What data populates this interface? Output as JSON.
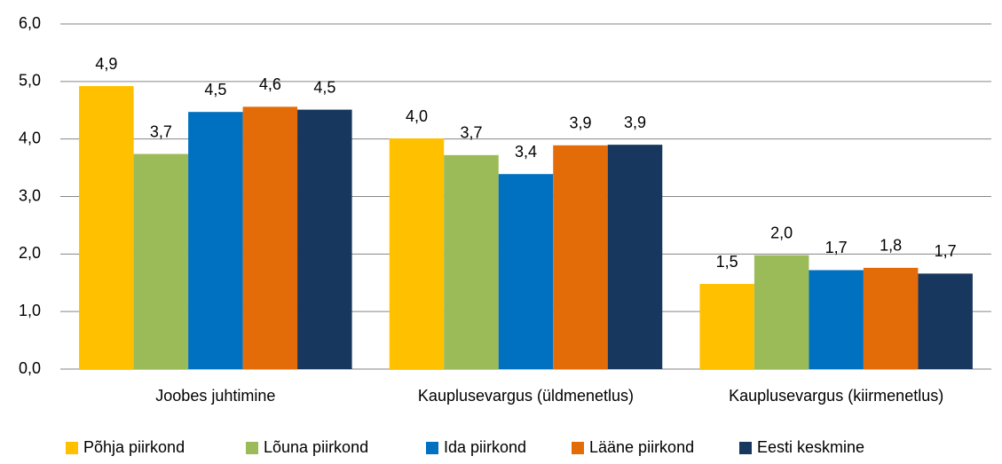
{
  "chart_data": {
    "type": "bar",
    "categories": [
      "Joobes juhtimine",
      "Kauplusevargus (üldmenetlus)",
      "Kauplusevargus (kiirmenetlus)"
    ],
    "series": [
      {
        "name": "Põhja piirkond",
        "color": "#FFC000",
        "values": [
          4.92,
          4.01,
          1.48
        ],
        "value_labels": [
          "4,9",
          "4,0",
          "1,5"
        ]
      },
      {
        "name": "Lõuna piirkond",
        "color": "#9BBB59",
        "values": [
          3.74,
          3.72,
          1.98
        ],
        "value_labels": [
          "3,7",
          "3,7",
          "2,0"
        ]
      },
      {
        "name": "Ida piirkond",
        "color": "#0070C0",
        "values": [
          4.47,
          3.39,
          1.72
        ],
        "value_labels": [
          "4,5",
          "3,4",
          "1,7"
        ]
      },
      {
        "name": "Lääne piirkond",
        "color": "#E36C09",
        "values": [
          4.56,
          3.89,
          1.76
        ],
        "value_labels": [
          "4,6",
          "3,9",
          "1,8"
        ]
      },
      {
        "name": "Eesti keskmine",
        "color": "#17375E",
        "values": [
          4.51,
          3.9,
          1.66
        ],
        "value_labels": [
          "4,5",
          "3,9",
          "1,7"
        ]
      }
    ],
    "ylim": [
      0,
      6
    ],
    "yticks": [
      {
        "value": 0,
        "label": "0,0"
      },
      {
        "value": 1,
        "label": "1,0"
      },
      {
        "value": 2,
        "label": "2,0"
      },
      {
        "value": 3,
        "label": "3,0"
      },
      {
        "value": 4,
        "label": "4,0"
      },
      {
        "value": 5,
        "label": "5,0"
      },
      {
        "value": 6,
        "label": "6,0"
      }
    ],
    "grid": true,
    "legend": "bottom"
  }
}
